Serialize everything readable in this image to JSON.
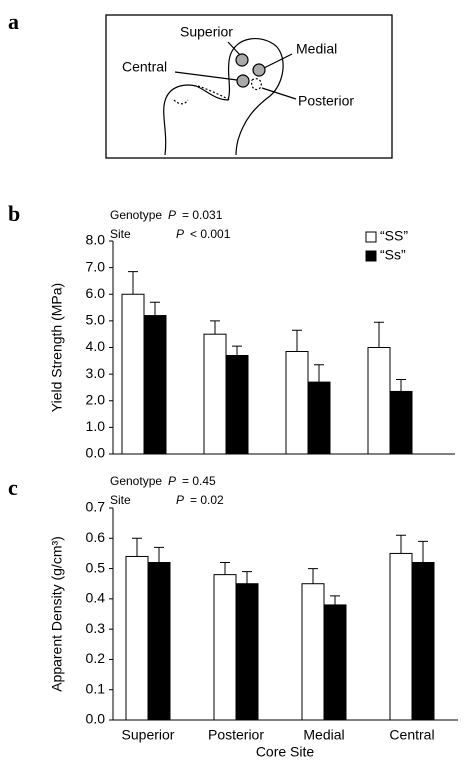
{
  "diagram": {
    "panel_label": "a",
    "labels": [
      "Superior",
      "Medial",
      "Central",
      "Posterior"
    ]
  },
  "chart_data": [
    {
      "type": "bar",
      "panel_label": "b",
      "y_label": "Yield Strength (MPa)",
      "annotations": [
        [
          "Genotype",
          "P",
          "= 0.031"
        ],
        [
          "Site",
          "P",
          "< 0.001"
        ]
      ],
      "categories": [
        null,
        null,
        null,
        null
      ],
      "series": [
        {
          "name": "“SS”",
          "color": "#ffffff",
          "values": [
            6.0,
            4.5,
            3.85,
            4.0
          ],
          "errors": [
            0.85,
            0.5,
            0.8,
            0.95
          ]
        },
        {
          "name": "“Ss”",
          "color": "#000000",
          "values": [
            5.2,
            3.7,
            2.7,
            2.35
          ],
          "errors": [
            0.5,
            0.35,
            0.65,
            0.45
          ]
        }
      ],
      "ylim": [
        0,
        8
      ],
      "yticks": [
        {
          "value": 0,
          "label": "0.0"
        },
        {
          "value": 1,
          "label": "1.0"
        },
        {
          "value": 2,
          "label": "2.0"
        },
        {
          "value": 3,
          "label": "3.0"
        },
        {
          "value": 4,
          "label": "4.0"
        },
        {
          "value": 5,
          "label": "5.0"
        },
        {
          "value": 6,
          "label": "6.0"
        },
        {
          "value": 7,
          "label": "7.0"
        },
        {
          "value": 8,
          "label": "8.0"
        }
      ],
      "legend": "upper right"
    },
    {
      "type": "bar",
      "panel_label": "c",
      "y_label": "Apparent Density (g/cm³)",
      "x_label": "Core Site",
      "annotations": [
        [
          "Genotype",
          "P",
          "= 0.45"
        ],
        [
          "Site",
          "P",
          "= 0.02"
        ]
      ],
      "categories": [
        "Superior",
        "Posterior",
        "Medial",
        "Central"
      ],
      "series": [
        {
          "color": "#ffffff",
          "values": [
            0.54,
            0.48,
            0.45,
            0.55
          ],
          "errors": [
            0.06,
            0.04,
            0.05,
            0.06
          ]
        },
        {
          "color": "#000000",
          "values": [
            0.52,
            0.45,
            0.38,
            0.52
          ],
          "errors": [
            0.05,
            0.04,
            0.03,
            0.07
          ]
        }
      ],
      "ylim": [
        0,
        0.7
      ],
      "yticks": [
        {
          "value": 0,
          "label": "0.0"
        },
        0.1,
        0.2,
        0.3,
        0.4,
        0.5,
        0.6,
        0.7
      ]
    }
  ]
}
